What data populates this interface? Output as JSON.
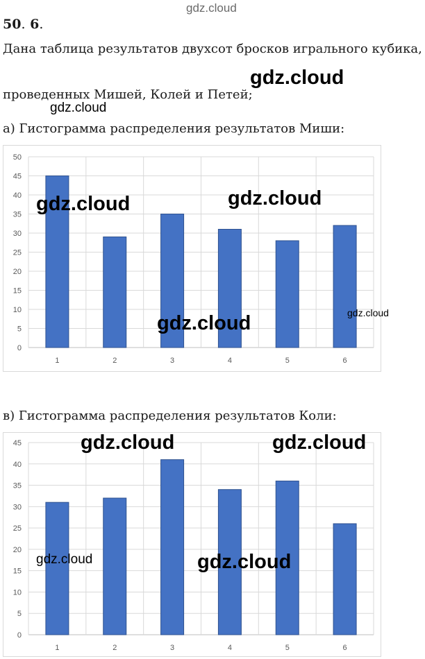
{
  "watermarks": {
    "top": "gdz.cloud",
    "header_big": "gdz.cloud",
    "header_small": "gdz.cloud",
    "chart1": [
      "gdz.cloud",
      "gdz.cloud",
      "gdz.cloud",
      "gdz.cloud"
    ],
    "chart2": [
      "gdz.cloud",
      "gdz.cloud",
      "gdz.cloud",
      "gdz.cloud"
    ]
  },
  "problem": {
    "number": "50",
    "dot": ".",
    "sub": "6",
    "end": ".",
    "line1": "Дана таблица результатов двухсот бросков игрального кубика,",
    "line2": "проведенных Мишей, Колей и Петей;"
  },
  "section_a": {
    "caption": "а) Гистограмма распределения результатов Миши:"
  },
  "section_b": {
    "caption": "в) Гистограмма распределения результатов Коли:"
  },
  "chart_data": [
    {
      "type": "bar",
      "categories": [
        "1",
        "2",
        "3",
        "4",
        "5",
        "6"
      ],
      "values": [
        45,
        29,
        35,
        31,
        28,
        32
      ],
      "ylim": [
        0,
        50
      ],
      "yticks": [
        0,
        5,
        10,
        15,
        20,
        25,
        30,
        35,
        40,
        45,
        50
      ],
      "color": "#4472c4",
      "grid": true,
      "legend": "none"
    },
    {
      "type": "bar",
      "categories": [
        "1",
        "2",
        "3",
        "4",
        "5",
        "6"
      ],
      "values": [
        31,
        32,
        41,
        34,
        36,
        26
      ],
      "ylim": [
        0,
        45
      ],
      "yticks": [
        0,
        5,
        10,
        15,
        20,
        25,
        30,
        35,
        40,
        45
      ],
      "color": "#4472c4",
      "grid": true,
      "legend": "none"
    }
  ]
}
